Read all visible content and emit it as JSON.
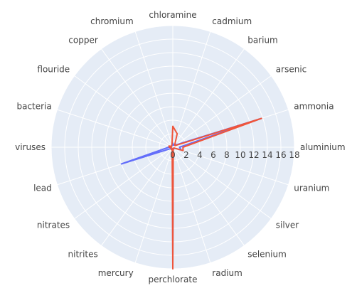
{
  "chart_data": {
    "type": "radar",
    "title": "",
    "categories": [
      "aluminium",
      "ammonia",
      "arsenic",
      "barium",
      "cadmium",
      "chloramine",
      "chromium",
      "copper",
      "flouride",
      "bacteria",
      "viruses",
      "lead",
      "nitrates",
      "nitrites",
      "mercury",
      "perchlorate",
      "radium",
      "selenium",
      "silver",
      "uranium"
    ],
    "radial_range": [
      0,
      18
    ],
    "radial_ticks": [
      "0",
      "2",
      "4",
      "6",
      "8",
      "10",
      "12",
      "14",
      "16",
      "18"
    ],
    "series": [
      {
        "color": "#636efa",
        "values": [
          1.0,
          13.8,
          0.6,
          0.6,
          0.3,
          0.6,
          0.3,
          0.3,
          0.2,
          0.5,
          0.6,
          8.0,
          0.3,
          0.3,
          0.2,
          17.0,
          0.2,
          0.3,
          0.2,
          1.3
        ]
      },
      {
        "color": "#ef553b",
        "values": [
          1.5,
          13.8,
          0.4,
          0.5,
          2.1,
          3.1,
          0.4,
          0.3,
          0.2,
          0.6,
          0.5,
          0.3,
          0.2,
          0.4,
          0.3,
          18.0,
          0.2,
          0.2,
          0.2,
          1.6
        ]
      }
    ],
    "grid": true,
    "legend": "none",
    "background": "#e5ecf6"
  }
}
